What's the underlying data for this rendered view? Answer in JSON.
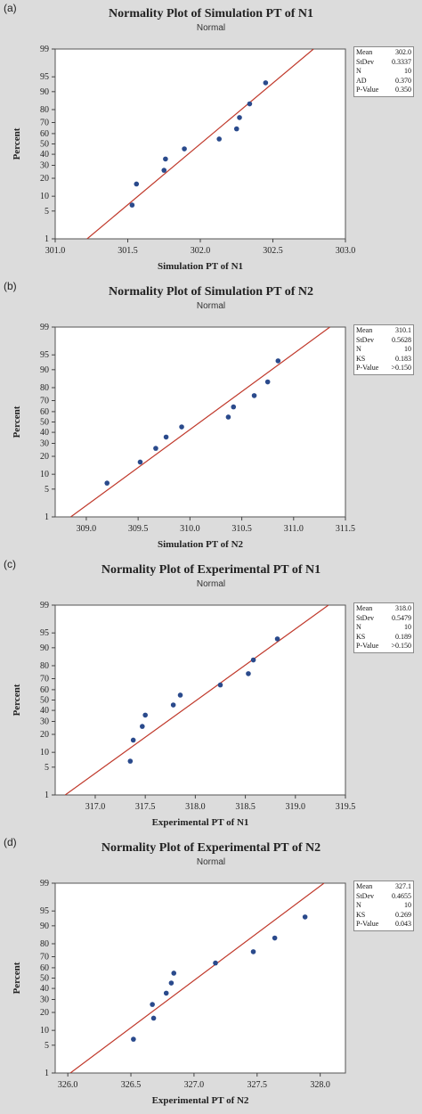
{
  "chart_data": [
    {
      "type": "scatter",
      "panel_label": "(a)",
      "title": "Normality Plot of Simulation PT of N1",
      "subtitle": "Normal",
      "xlabel": "Simulation PT of N1",
      "ylabel": "Percent",
      "xlim": [
        301.0,
        303.0
      ],
      "xticks": [
        "301.0",
        "301.5",
        "302.0",
        "302.5",
        "303.0"
      ],
      "xtick_values": [
        301.0,
        301.5,
        302.0,
        302.5,
        303.0
      ],
      "ylim": [
        1,
        99
      ],
      "yscale": "normal-probability",
      "yticks": [
        1,
        5,
        10,
        20,
        30,
        40,
        50,
        60,
        70,
        80,
        90,
        95,
        99
      ],
      "points": [
        {
          "x": 301.53,
          "y": 6.7
        },
        {
          "x": 301.56,
          "y": 16.3
        },
        {
          "x": 301.75,
          "y": 25.9
        },
        {
          "x": 301.76,
          "y": 35.6
        },
        {
          "x": 301.89,
          "y": 45.2
        },
        {
          "x": 302.13,
          "y": 54.8
        },
        {
          "x": 302.25,
          "y": 64.4
        },
        {
          "x": 302.27,
          "y": 74.1
        },
        {
          "x": 302.34,
          "y": 83.7
        },
        {
          "x": 302.45,
          "y": 93.3
        }
      ],
      "fit_line": {
        "x1": 301.22,
        "x2": 302.78,
        "y1": 1,
        "y2": 99
      },
      "line_color": "#c0392b",
      "point_color": "#2a4a8c",
      "stats": [
        {
          "label": "Mean",
          "value": "302.0"
        },
        {
          "label": "StDev",
          "value": "0.3337"
        },
        {
          "label": "N",
          "value": "10"
        },
        {
          "label": "AD",
          "value": "0.370"
        },
        {
          "label": "P-Value",
          "value": "0.350"
        }
      ]
    },
    {
      "type": "scatter",
      "panel_label": "(b)",
      "title": "Normality Plot of Simulation PT of N2",
      "subtitle": "Normal",
      "xlabel": "Simulation PT of N2",
      "ylabel": "Percent",
      "xlim": [
        308.7,
        311.5
      ],
      "xticks": [
        "309.0",
        "309.5",
        "310.0",
        "310.5",
        "311.0",
        "311.5"
      ],
      "xtick_values": [
        309.0,
        309.5,
        310.0,
        310.5,
        311.0,
        311.5
      ],
      "ylim": [
        1,
        99
      ],
      "yscale": "normal-probability",
      "yticks": [
        1,
        5,
        10,
        20,
        30,
        40,
        50,
        60,
        70,
        80,
        90,
        95,
        99
      ],
      "points": [
        {
          "x": 309.2,
          "y": 6.7
        },
        {
          "x": 309.52,
          "y": 16.3
        },
        {
          "x": 309.67,
          "y": 25.9
        },
        {
          "x": 309.77,
          "y": 35.6
        },
        {
          "x": 309.92,
          "y": 45.2
        },
        {
          "x": 310.37,
          "y": 54.8
        },
        {
          "x": 310.42,
          "y": 64.4
        },
        {
          "x": 310.62,
          "y": 74.1
        },
        {
          "x": 310.75,
          "y": 83.7
        },
        {
          "x": 310.85,
          "y": 93.3
        }
      ],
      "fit_line": {
        "x1": 308.85,
        "x2": 311.35,
        "y1": 1,
        "y2": 99
      },
      "line_color": "#c0392b",
      "point_color": "#2a4a8c",
      "stats": [
        {
          "label": "Mean",
          "value": "310.1"
        },
        {
          "label": "StDev",
          "value": "0.5628"
        },
        {
          "label": "N",
          "value": "10"
        },
        {
          "label": "KS",
          "value": "0.183"
        },
        {
          "label": "P-Value",
          "value": ">0.150"
        }
      ]
    },
    {
      "type": "scatter",
      "panel_label": "(c)",
      "title": "Normality Plot of Experimental PT of N1",
      "subtitle": "Normal",
      "xlabel": "Experimental PT of N1",
      "ylabel": "Percent",
      "xlim": [
        316.6,
        319.5
      ],
      "xticks": [
        "317.0",
        "317.5",
        "318.0",
        "318.5",
        "319.0",
        "319.5"
      ],
      "xtick_values": [
        317.0,
        317.5,
        318.0,
        318.5,
        319.0,
        319.5
      ],
      "ylim": [
        1,
        99
      ],
      "yscale": "normal-probability",
      "yticks": [
        1,
        5,
        10,
        20,
        30,
        40,
        50,
        60,
        70,
        80,
        90,
        95,
        99
      ],
      "points": [
        {
          "x": 317.35,
          "y": 6.7
        },
        {
          "x": 317.38,
          "y": 16.3
        },
        {
          "x": 317.47,
          "y": 25.9
        },
        {
          "x": 317.5,
          "y": 35.6
        },
        {
          "x": 317.78,
          "y": 45.2
        },
        {
          "x": 317.85,
          "y": 54.8
        },
        {
          "x": 318.25,
          "y": 64.4
        },
        {
          "x": 318.53,
          "y": 74.1
        },
        {
          "x": 318.58,
          "y": 83.7
        },
        {
          "x": 318.82,
          "y": 93.3
        }
      ],
      "fit_line": {
        "x1": 316.7,
        "x2": 319.33,
        "y1": 1,
        "y2": 99
      },
      "line_color": "#c0392b",
      "point_color": "#2a4a8c",
      "stats": [
        {
          "label": "Mean",
          "value": "318.0"
        },
        {
          "label": "StDev",
          "value": "0.5479"
        },
        {
          "label": "N",
          "value": "10"
        },
        {
          "label": "KS",
          "value": "0.189"
        },
        {
          "label": "P-Value",
          "value": ">0.150"
        }
      ]
    },
    {
      "type": "scatter",
      "panel_label": "(d)",
      "title": "Normality Plot of Experimental PT of N2",
      "subtitle": "Normal",
      "xlabel": "Experimental PT of N2",
      "ylabel": "Percent",
      "xlim": [
        325.9,
        328.2
      ],
      "xticks": [
        "326.0",
        "326.5",
        "327.0",
        "327.5",
        "328.0"
      ],
      "xtick_values": [
        326.0,
        326.5,
        327.0,
        327.5,
        328.0
      ],
      "ylim": [
        1,
        99
      ],
      "yscale": "normal-probability",
      "yticks": [
        1,
        5,
        10,
        20,
        30,
        40,
        50,
        60,
        70,
        80,
        90,
        95,
        99
      ],
      "points": [
        {
          "x": 326.52,
          "y": 6.7
        },
        {
          "x": 326.68,
          "y": 16.3
        },
        {
          "x": 326.67,
          "y": 25.9
        },
        {
          "x": 326.78,
          "y": 35.6
        },
        {
          "x": 326.82,
          "y": 45.2
        },
        {
          "x": 326.84,
          "y": 54.8
        },
        {
          "x": 327.17,
          "y": 64.4
        },
        {
          "x": 327.47,
          "y": 74.1
        },
        {
          "x": 327.64,
          "y": 83.7
        },
        {
          "x": 327.88,
          "y": 93.3
        }
      ],
      "fit_line": {
        "x1": 326.02,
        "x2": 328.03,
        "y1": 1,
        "y2": 99
      },
      "line_color": "#c0392b",
      "point_color": "#2a4a8c",
      "stats": [
        {
          "label": "Mean",
          "value": "327.1"
        },
        {
          "label": "StDev",
          "value": "0.4655"
        },
        {
          "label": "N",
          "value": "10"
        },
        {
          "label": "KS",
          "value": "0.269"
        },
        {
          "label": "P-Value",
          "value": "0.043"
        }
      ]
    }
  ]
}
